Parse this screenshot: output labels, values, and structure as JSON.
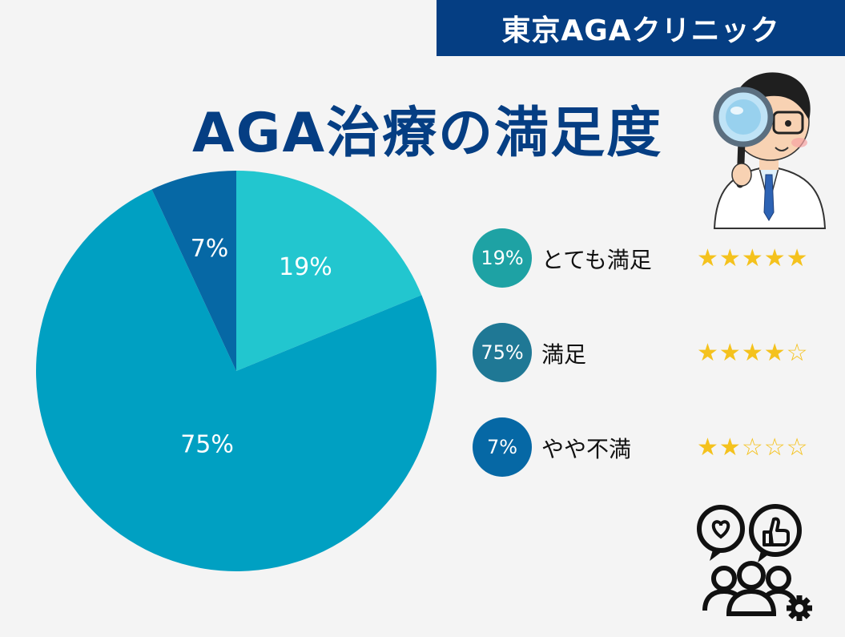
{
  "header": {
    "brand": "東京AGAクリニック"
  },
  "page": {
    "title": "AGA治療の満足度"
  },
  "colors": {
    "very_satisfied": "#22c6cf",
    "satisfied": "#00a0c2",
    "somewhat_unsatisfied": "#0668a5",
    "legend_very_satisfied": "#1ea2a4",
    "legend_satisfied": "#1f7895",
    "legend_somewhat_unsatisfied": "#0668a5",
    "brand": "#053e83",
    "star": "#f4c21d"
  },
  "legend": [
    {
      "pct": "19%",
      "label": "とても満足",
      "stars": 5,
      "max_stars": 5
    },
    {
      "pct": "75%",
      "label": "満足",
      "stars": 4,
      "max_stars": 5
    },
    {
      "pct": "7%",
      "label": "やや不満",
      "stars": 2,
      "max_stars": 5
    }
  ],
  "chart_data": {
    "type": "pie",
    "title": "AGA治療の満足度",
    "slices": [
      {
        "label": "とても満足",
        "value": 19,
        "display": "19%",
        "color": "#22c6cf"
      },
      {
        "label": "満足",
        "value": 75,
        "display": "75%",
        "color": "#00a0c2"
      },
      {
        "label": "やや不満",
        "value": 7,
        "display": "7%",
        "color": "#0668a5"
      }
    ],
    "start": "12 o'clock",
    "direction": "clockwise",
    "legend_position": "right"
  },
  "icons": {
    "doctor": "doctor-magnifier-illustration",
    "feedback": "customer-feedback-icon",
    "star": "star-icon"
  }
}
